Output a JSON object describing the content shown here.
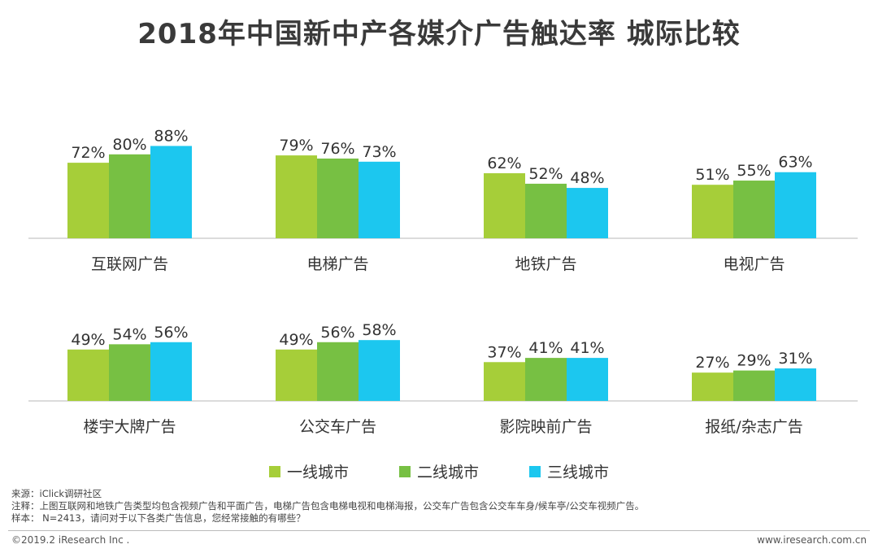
{
  "title": "2018年中国新中产各媒介广告触达率 城际比较",
  "colors": {
    "tier1": "#a6ce39",
    "tier2": "#77c043",
    "tier3": "#1cc7ef",
    "axis": "#cfcfcf"
  },
  "chart_data": {
    "type": "bar",
    "series": [
      {
        "name": "一线城市"
      },
      {
        "name": "二线城市"
      },
      {
        "name": "三线城市"
      }
    ],
    "groups": [
      {
        "category": "互联网广告",
        "values": [
          72,
          80,
          88
        ]
      },
      {
        "category": "电梯广告",
        "values": [
          79,
          76,
          73
        ]
      },
      {
        "category": "地铁广告",
        "values": [
          62,
          52,
          48
        ]
      },
      {
        "category": "电视广告",
        "values": [
          51,
          55,
          63
        ]
      },
      {
        "category": "楼宇大牌广告",
        "values": [
          49,
          54,
          56
        ]
      },
      {
        "category": "公交车广告",
        "values": [
          49,
          56,
          58
        ]
      },
      {
        "category": "影院映前广告",
        "values": [
          37,
          41,
          41
        ]
      },
      {
        "category": "报纸/杂志广告",
        "values": [
          27,
          29,
          31
        ]
      }
    ],
    "unit": "%",
    "ylim": [
      0,
      100
    ],
    "legend_position": "bottom"
  },
  "notes": {
    "source": "来源：iClick调研社区",
    "remark": "注释：上图互联网和地铁广告类型均包含视频广告和平面广告，电梯广告包含电梯电视和电梯海报，公交车广告包含公交车车身/候车亭/公交车视频广告。",
    "sample": "样本： N=2413，请问对于以下各类广告信息，您经常接触的有哪些？"
  },
  "footer": {
    "copyright": "©2019.2 iResearch Inc .",
    "website": "www.iresearch.com.cn"
  }
}
